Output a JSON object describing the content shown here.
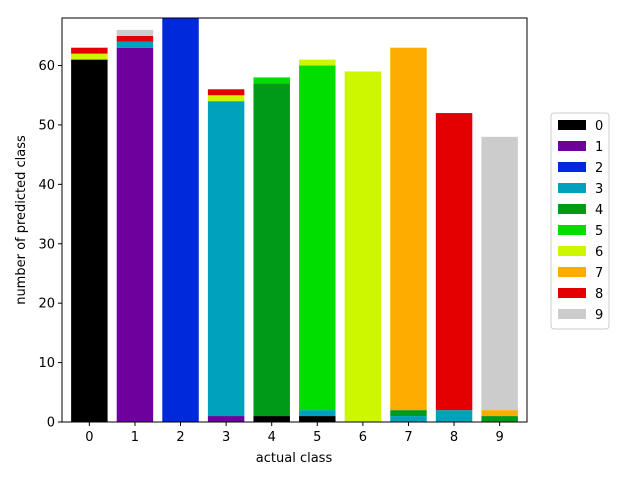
{
  "chart_data": {
    "type": "bar",
    "stacked": true,
    "title": "",
    "xlabel": "actual class",
    "ylabel": "number of predicted class",
    "categories": [
      "0",
      "1",
      "2",
      "3",
      "4",
      "5",
      "6",
      "7",
      "8",
      "9"
    ],
    "ylim": [
      0,
      68
    ],
    "yticks": [
      0,
      10,
      20,
      30,
      40,
      50,
      60
    ],
    "grid": false,
    "legend_position": "right",
    "series": [
      {
        "name": "0",
        "color": "#000000",
        "values": [
          61,
          0,
          0,
          0,
          1,
          1,
          0,
          0,
          0,
          0
        ]
      },
      {
        "name": "1",
        "color": "#6e009e",
        "values": [
          0,
          63,
          0,
          1,
          0,
          0,
          0,
          0,
          0,
          0
        ]
      },
      {
        "name": "2",
        "color": "#0029dc",
        "values": [
          0,
          0,
          68,
          0,
          0,
          0,
          0,
          0,
          0,
          0
        ]
      },
      {
        "name": "3",
        "color": "#00a2bb",
        "values": [
          0,
          1,
          0,
          53,
          0,
          1,
          0,
          1,
          2,
          0
        ]
      },
      {
        "name": "4",
        "color": "#009a19",
        "values": [
          0,
          0,
          0,
          0,
          56,
          0,
          0,
          1,
          0,
          1
        ]
      },
      {
        "name": "5",
        "color": "#00de00",
        "values": [
          0,
          0,
          0,
          0,
          1,
          58,
          0,
          0,
          0,
          0
        ]
      },
      {
        "name": "6",
        "color": "#ccf700",
        "values": [
          1,
          0,
          0,
          1,
          0,
          1,
          59,
          0,
          0,
          0
        ]
      },
      {
        "name": "7",
        "color": "#ffac00",
        "values": [
          0,
          0,
          0,
          0,
          0,
          0,
          0,
          61,
          0,
          1
        ]
      },
      {
        "name": "8",
        "color": "#e40000",
        "values": [
          1,
          1,
          0,
          1,
          0,
          0,
          0,
          0,
          50,
          0
        ]
      },
      {
        "name": "9",
        "color": "#cccccc",
        "values": [
          0,
          1,
          0,
          0,
          0,
          0,
          0,
          0,
          0,
          46
        ]
      }
    ]
  }
}
